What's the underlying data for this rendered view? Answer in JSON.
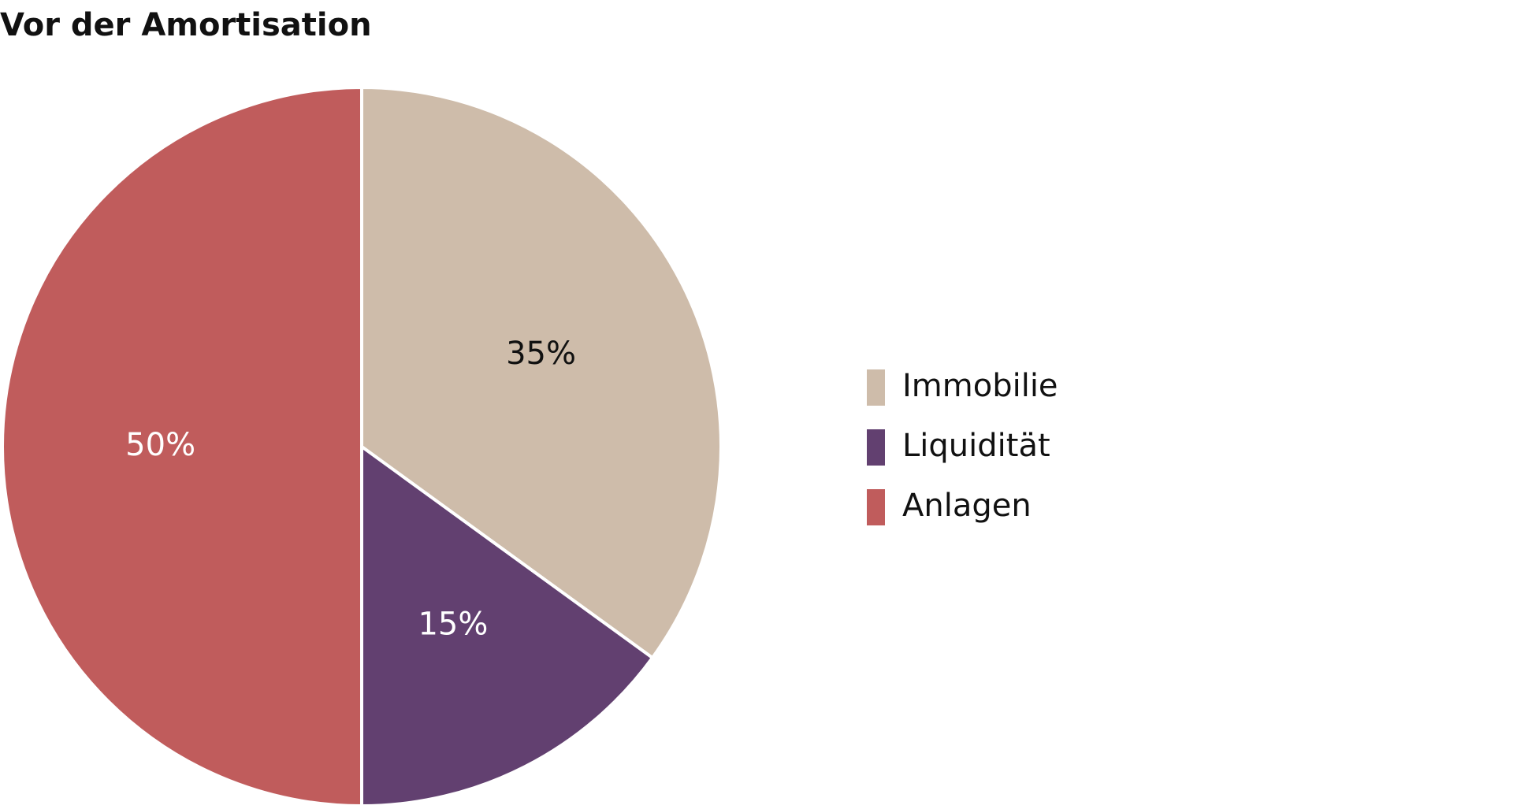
{
  "chart_data": {
    "type": "pie",
    "title": "Vor der Amortisation",
    "categories": [
      "Immobilie",
      "Liquidität",
      "Anlagen"
    ],
    "values": [
      35,
      15,
      50
    ],
    "value_labels": [
      "35%",
      "15%",
      "50%"
    ],
    "colors": [
      "#cebcaa",
      "#624070",
      "#c05c5c"
    ],
    "label_colors": [
      "#111111",
      "#ffffff",
      "#ffffff"
    ],
    "legend": "right"
  }
}
